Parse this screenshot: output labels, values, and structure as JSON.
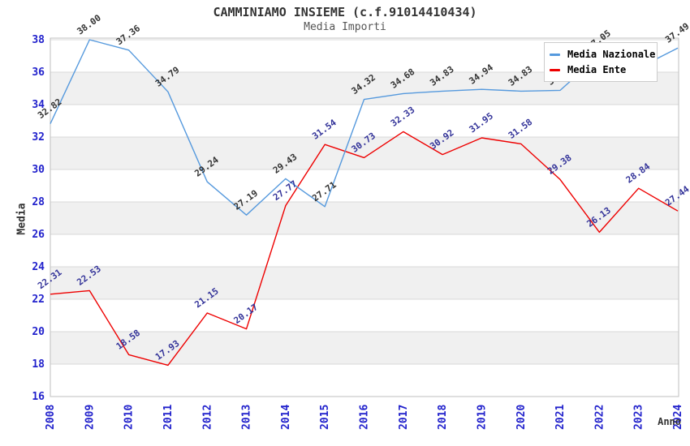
{
  "page": {
    "background": "#ffffff"
  },
  "chart_data": {
    "type": "line",
    "title": "CAMMINIAMO INSIEME (c.f.91014410434)",
    "subtitle": "Media Importi",
    "xlabel": "Anno",
    "ylabel": "Media",
    "ylim": [
      16,
      38
    ],
    "y_ticks": [
      16,
      18,
      20,
      22,
      24,
      26,
      28,
      30,
      32,
      34,
      36,
      38
    ],
    "grid": "horizontal-bands",
    "legend_position": "top-right-overlay",
    "categories": [
      "2008",
      "2009",
      "2010",
      "2011",
      "2012",
      "2013",
      "2014",
      "2015",
      "2016",
      "2017",
      "2018",
      "2019",
      "2020",
      "2021",
      "2022",
      "2023",
      "2024"
    ],
    "series": [
      {
        "name": "Media Nazionale",
        "color": "#5599dd",
        "label_color": "#333333",
        "values": [
          32.82,
          38.0,
          37.36,
          34.79,
          29.24,
          27.19,
          29.43,
          27.71,
          34.32,
          34.68,
          34.83,
          34.94,
          34.83,
          34.88,
          37.05,
          36.26,
          37.49
        ]
      },
      {
        "name": "Media Ente",
        "color": "#ee0000",
        "label_color": "#333399",
        "values": [
          22.31,
          22.53,
          18.58,
          17.93,
          21.15,
          20.17,
          27.77,
          31.54,
          30.73,
          32.33,
          30.92,
          31.95,
          31.58,
          29.38,
          26.13,
          28.84,
          27.44
        ]
      }
    ],
    "colors": {
      "tick_label": "#2222cc",
      "band_gray": "#f0f0f0",
      "gridline": "#d9d9d9",
      "plot_border": "#bfbfbf",
      "title": "#333333",
      "subtitle": "#555555"
    }
  }
}
